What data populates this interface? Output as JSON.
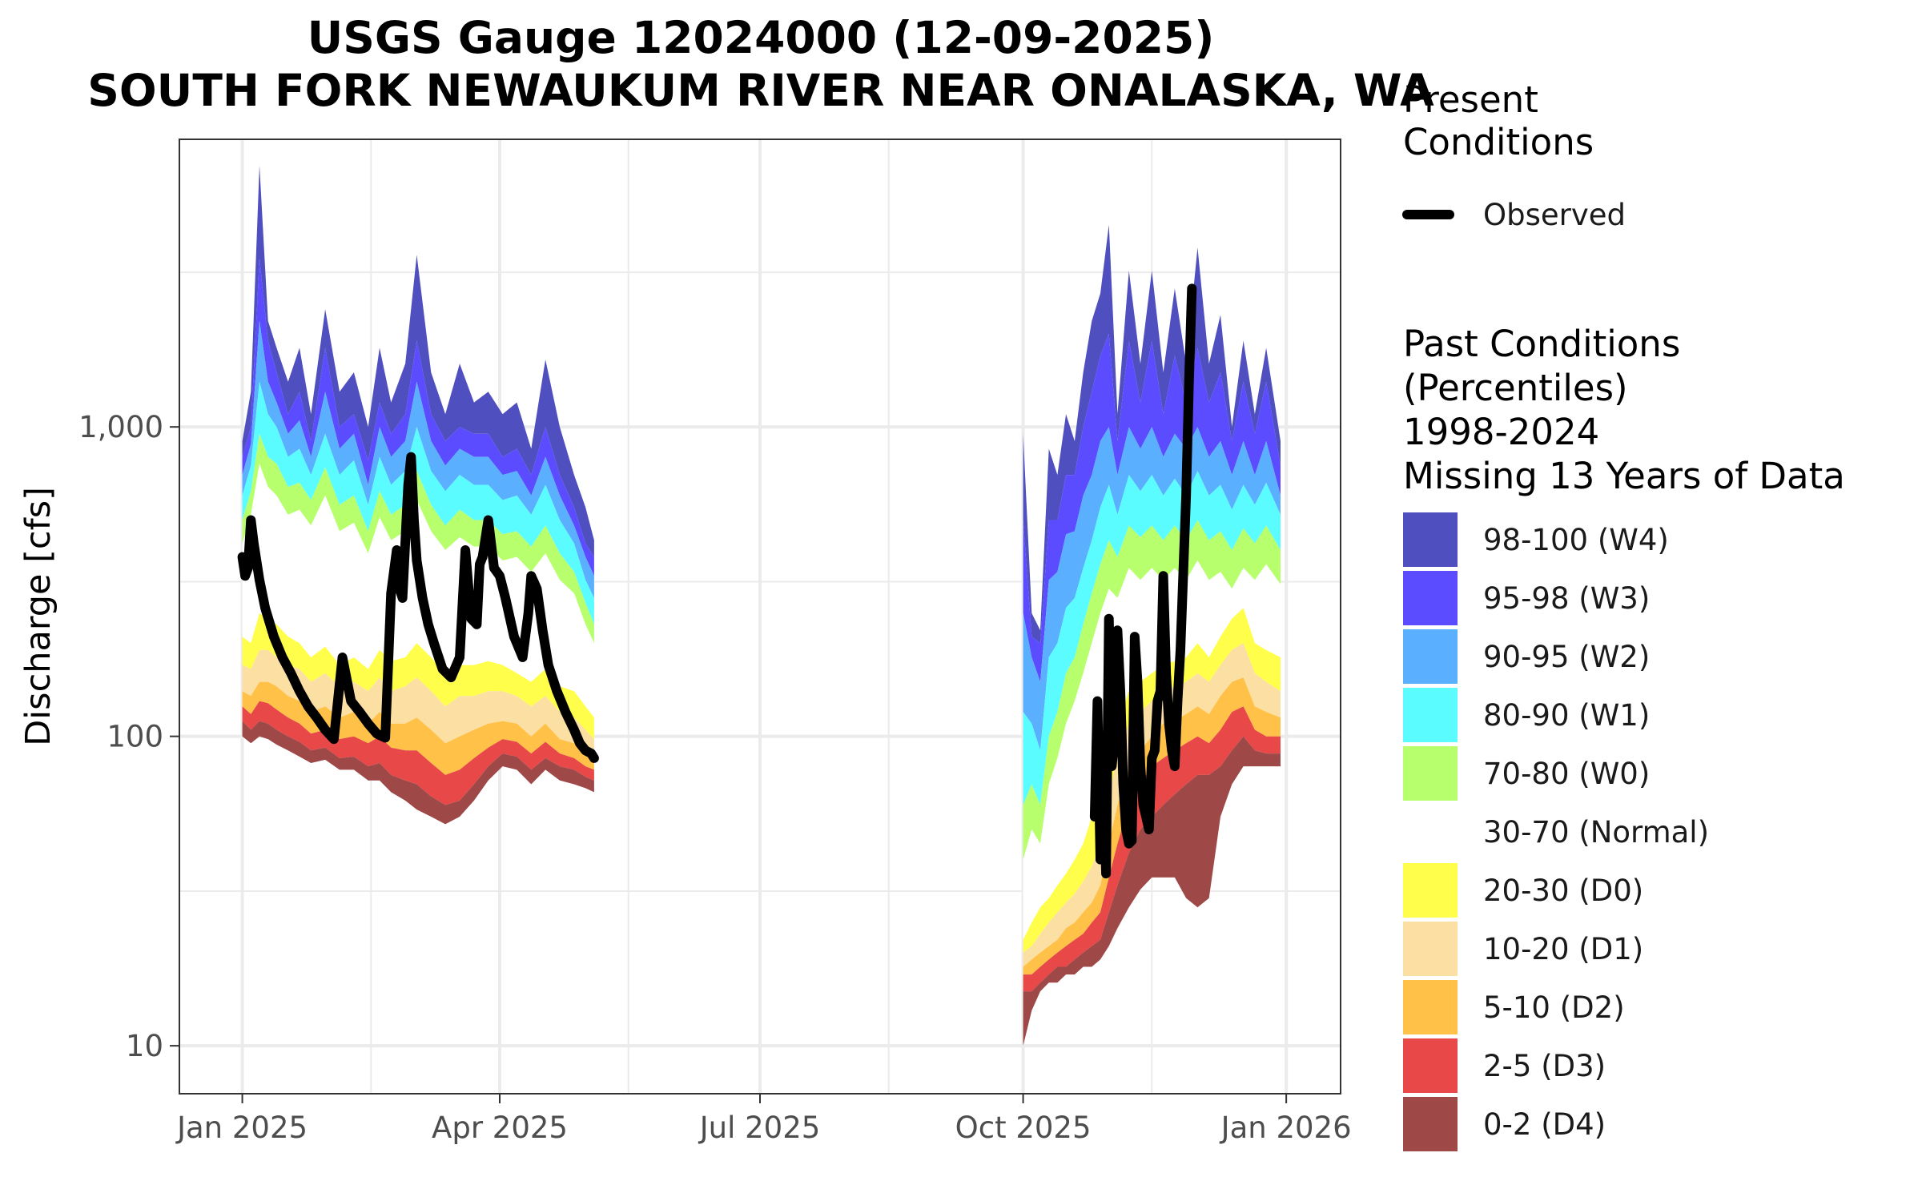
{
  "chart_data": {
    "type": "area",
    "title": "USGS Gauge 12024000 (12-09-2025)",
    "subtitle": "SOUTH FORK NEWAUKUM RIVER NEAR ONALASKA, WA",
    "ylabel": "Discharge [cfs]",
    "xlabel": "",
    "y_scale": "log",
    "ylim": [
      7,
      8500
    ],
    "xlim": [
      "2024-12-10",
      "2026-01-20"
    ],
    "grid": true,
    "legend_position": "right",
    "x_ticks": [
      {
        "date": "2025-01-01",
        "label": "Jan 2025"
      },
      {
        "date": "2025-04-01",
        "label": "Apr 2025"
      },
      {
        "date": "2025-07-01",
        "label": "Jul 2025"
      },
      {
        "date": "2025-10-01",
        "label": "Oct 2025"
      },
      {
        "date": "2026-01-01",
        "label": "Jan 2026"
      }
    ],
    "x_minor_ticks": [
      "2025-02-15",
      "2025-05-16",
      "2025-08-15",
      "2025-11-15"
    ],
    "y_ticks": [
      {
        "value": 10,
        "label": "10"
      },
      {
        "value": 100,
        "label": "100"
      },
      {
        "value": 1000,
        "label": "1,000"
      }
    ],
    "y_minor_ticks": [
      31.6,
      316,
      3160
    ],
    "present_legend_title": "Present\nConditions",
    "observed_label": "Observed",
    "observed_color": "#000000",
    "past_legend_title": "Past Conditions\n(Percentiles)\n1998-2024\nMissing 13 Years of Data",
    "bands": [
      {
        "name": "98-100 (W4)",
        "color": "#4f4fbf"
      },
      {
        "name": "95-98 (W3)",
        "color": "#5b4cff"
      },
      {
        "name": "90-95 (W2)",
        "color": "#5aafff"
      },
      {
        "name": "80-90 (W1)",
        "color": "#5afcff"
      },
      {
        "name": "70-80 (W0)",
        "color": "#b7ff6d"
      },
      {
        "name": "30-70 (Normal)",
        "color": "#ffffff"
      },
      {
        "name": "20-30 (D0)",
        "color": "#ffff4b"
      },
      {
        "name": "10-20 (D1)",
        "color": "#fcdfa3"
      },
      {
        "name": "5-10 (D2)",
        "color": "#ffc148"
      },
      {
        "name": "2-5 (D3)",
        "color": "#e94848"
      },
      {
        "name": "0-2 (D4)",
        "color": "#9e4848"
      }
    ],
    "percentile_bands": {
      "segment_1": {
        "x": [
          "2025-01-01",
          "2025-01-04",
          "2025-01-07",
          "2025-01-10",
          "2025-01-13",
          "2025-01-17",
          "2025-01-21",
          "2025-01-25",
          "2025-01-30",
          "2025-02-04",
          "2025-02-09",
          "2025-02-14",
          "2025-02-18",
          "2025-02-22",
          "2025-02-27",
          "2025-03-03",
          "2025-03-08",
          "2025-03-13",
          "2025-03-18",
          "2025-03-23",
          "2025-03-28",
          "2025-04-02",
          "2025-04-07",
          "2025-04-12",
          "2025-04-17",
          "2025-04-22",
          "2025-04-27",
          "2025-05-01",
          "2025-05-04"
        ],
        "p100": [
          900,
          1300,
          7000,
          2200,
          1800,
          1400,
          1800,
          1100,
          2400,
          1300,
          1500,
          1000,
          1800,
          1200,
          1600,
          3600,
          1500,
          1100,
          1600,
          1200,
          1300,
          1100,
          1200,
          850,
          1650,
          1000,
          700,
          550,
          430
        ],
        "p98": [
          800,
          1000,
          3500,
          1900,
          1500,
          1100,
          1300,
          900,
          1800,
          1000,
          1100,
          780,
          1200,
          950,
          1100,
          1900,
          1100,
          900,
          1000,
          950,
          950,
          800,
          850,
          700,
          1000,
          700,
          550,
          420,
          380
        ],
        "p95": [
          700,
          880,
          2200,
          1400,
          1200,
          950,
          1050,
          800,
          1300,
          850,
          950,
          650,
          1000,
          800,
          900,
          1400,
          900,
          750,
          850,
          800,
          800,
          700,
          720,
          600,
          800,
          600,
          480,
          380,
          330
        ],
        "p90": [
          600,
          750,
          1400,
          1100,
          1000,
          800,
          850,
          700,
          950,
          700,
          780,
          560,
          800,
          650,
          720,
          1000,
          720,
          620,
          700,
          650,
          650,
          580,
          600,
          520,
          650,
          500,
          420,
          320,
          280
        ],
        "p80": [
          500,
          620,
          950,
          800,
          760,
          640,
          660,
          580,
          740,
          560,
          600,
          460,
          620,
          520,
          560,
          720,
          560,
          480,
          540,
          500,
          500,
          450,
          460,
          410,
          480,
          390,
          340,
          270,
          230
        ],
        "p70": [
          420,
          520,
          760,
          640,
          600,
          520,
          540,
          480,
          600,
          460,
          490,
          390,
          510,
          430,
          460,
          580,
          460,
          400,
          440,
          410,
          410,
          370,
          380,
          340,
          390,
          320,
          290,
          230,
          200
        ],
        "p30": [
          210,
          200,
          250,
          240,
          230,
          210,
          200,
          180,
          195,
          170,
          180,
          165,
          190,
          175,
          180,
          200,
          180,
          160,
          170,
          170,
          175,
          170,
          160,
          150,
          165,
          145,
          140,
          125,
          115
        ],
        "p20": [
          170,
          165,
          190,
          190,
          180,
          170,
          165,
          150,
          160,
          145,
          150,
          140,
          155,
          140,
          145,
          155,
          140,
          125,
          135,
          135,
          140,
          140,
          135,
          125,
          135,
          120,
          115,
          105,
          98
        ],
        "p10": [
          140,
          135,
          150,
          150,
          145,
          135,
          130,
          120,
          125,
          115,
          120,
          110,
          120,
          110,
          110,
          115,
          105,
          95,
          100,
          105,
          110,
          112,
          110,
          100,
          110,
          98,
          95,
          88,
          85
        ],
        "p5": [
          125,
          118,
          130,
          128,
          122,
          115,
          110,
          102,
          105,
          98,
          100,
          95,
          100,
          92,
          90,
          90,
          82,
          75,
          78,
          85,
          92,
          98,
          96,
          88,
          96,
          88,
          85,
          80,
          78
        ],
        "p2": [
          112,
          105,
          112,
          110,
          105,
          100,
          96,
          90,
          92,
          85,
          86,
          80,
          82,
          75,
          72,
          70,
          64,
          60,
          62,
          70,
          80,
          88,
          86,
          78,
          85,
          80,
          78,
          74,
          72
        ],
        "p0": [
          100,
          95,
          100,
          98,
          94,
          90,
          86,
          82,
          84,
          78,
          78,
          72,
          72,
          66,
          62,
          58,
          55,
          52,
          55,
          62,
          72,
          80,
          78,
          70,
          78,
          72,
          70,
          68,
          66
        ]
      },
      "segment_2": {
        "x": [
          "2025-10-01",
          "2025-10-04",
          "2025-10-07",
          "2025-10-10",
          "2025-10-13",
          "2025-10-16",
          "2025-10-19",
          "2025-10-22",
          "2025-10-25",
          "2025-10-28",
          "2025-10-31",
          "2025-11-03",
          "2025-11-07",
          "2025-11-11",
          "2025-11-15",
          "2025-11-19",
          "2025-11-23",
          "2025-11-27",
          "2025-12-01",
          "2025-12-05",
          "2025-12-09",
          "2025-12-13",
          "2025-12-17",
          "2025-12-21",
          "2025-12-25",
          "2025-12-30"
        ],
        "p100": [
          950,
          250,
          220,
          850,
          700,
          1100,
          900,
          1500,
          2200,
          2700,
          4500,
          1100,
          3200,
          1600,
          3200,
          1500,
          2800,
          1600,
          3800,
          1600,
          2300,
          1000,
          1900,
          1100,
          1800,
          900
        ],
        "p98": [
          500,
          210,
          200,
          500,
          500,
          700,
          700,
          1000,
          1300,
          1700,
          2000,
          900,
          1900,
          1200,
          1900,
          1100,
          1700,
          1200,
          1800,
          1200,
          1500,
          900,
          1400,
          950,
          1400,
          750
        ],
        "p95": [
          250,
          180,
          150,
          320,
          340,
          450,
          460,
          600,
          700,
          900,
          1000,
          700,
          1000,
          850,
          1000,
          800,
          950,
          850,
          1000,
          800,
          900,
          700,
          900,
          700,
          900,
          600
        ],
        "p90": [
          120,
          110,
          90,
          180,
          200,
          260,
          280,
          350,
          430,
          550,
          650,
          520,
          700,
          620,
          700,
          600,
          680,
          600,
          720,
          600,
          650,
          540,
          650,
          560,
          660,
          520
        ],
        "p80": [
          60,
          70,
          60,
          100,
          120,
          160,
          180,
          230,
          290,
          360,
          430,
          380,
          480,
          440,
          480,
          430,
          480,
          430,
          500,
          430,
          460,
          400,
          470,
          420,
          480,
          400
        ],
        "p70": [
          40,
          50,
          45,
          70,
          85,
          110,
          130,
          160,
          200,
          250,
          300,
          280,
          350,
          320,
          350,
          320,
          350,
          320,
          370,
          320,
          340,
          300,
          350,
          320,
          360,
          310
        ],
        "p30": [
          22,
          25,
          28,
          30,
          33,
          36,
          40,
          45,
          55,
          60,
          90,
          110,
          140,
          150,
          160,
          170,
          175,
          180,
          200,
          180,
          210,
          240,
          260,
          200,
          190,
          180
        ],
        "p20": [
          20,
          21,
          23,
          25,
          27,
          29,
          31,
          34,
          38,
          45,
          65,
          85,
          110,
          120,
          130,
          140,
          145,
          150,
          160,
          150,
          170,
          190,
          200,
          160,
          150,
          140
        ],
        "p10": [
          18,
          19,
          20,
          21,
          22,
          24,
          25,
          27,
          29,
          33,
          45,
          60,
          80,
          90,
          100,
          110,
          112,
          118,
          125,
          118,
          135,
          150,
          155,
          125,
          120,
          115
        ],
        "p5": [
          17,
          17,
          18,
          19,
          20,
          21,
          22,
          23,
          25,
          27,
          35,
          45,
          60,
          70,
          80,
          85,
          90,
          95,
          100,
          95,
          105,
          120,
          125,
          105,
          100,
          100
        ],
        "p2": [
          15,
          15,
          16,
          17,
          18,
          18,
          19,
          20,
          21,
          22,
          27,
          33,
          42,
          50,
          55,
          60,
          65,
          70,
          75,
          75,
          80,
          90,
          100,
          90,
          88,
          88
        ],
        "p0": [
          10,
          13,
          15,
          16,
          16,
          17,
          17,
          18,
          18,
          19,
          21,
          24,
          28,
          32,
          35,
          35,
          35,
          30,
          28,
          30,
          55,
          70,
          80,
          80,
          80,
          80
        ]
      }
    },
    "observed": {
      "segment_1": {
        "x": [
          "2025-01-01",
          "2025-01-02",
          "2025-01-03",
          "2025-01-04",
          "2025-01-05",
          "2025-01-07",
          "2025-01-09",
          "2025-01-12",
          "2025-01-15",
          "2025-01-18",
          "2025-01-21",
          "2025-01-24",
          "2025-01-27",
          "2025-01-30",
          "2025-02-02",
          "2025-02-05",
          "2025-02-08",
          "2025-02-11",
          "2025-02-14",
          "2025-02-17",
          "2025-02-20",
          "2025-02-22",
          "2025-02-24",
          "2025-02-25",
          "2025-02-26",
          "2025-02-28",
          "2025-03-01",
          "2025-03-02",
          "2025-03-03",
          "2025-03-05",
          "2025-03-07",
          "2025-03-09",
          "2025-03-12",
          "2025-03-15",
          "2025-03-18",
          "2025-03-20",
          "2025-03-22",
          "2025-03-24",
          "2025-03-25",
          "2025-03-26",
          "2025-03-28",
          "2025-03-30",
          "2025-04-01",
          "2025-04-03",
          "2025-04-06",
          "2025-04-09",
          "2025-04-11",
          "2025-04-12",
          "2025-04-14",
          "2025-04-16",
          "2025-04-18",
          "2025-04-21",
          "2025-04-24",
          "2025-04-27",
          "2025-04-29",
          "2025-05-01",
          "2025-05-03",
          "2025-05-04"
        ],
        "y": [
          380,
          330,
          350,
          500,
          420,
          320,
          260,
          210,
          180,
          160,
          140,
          125,
          115,
          105,
          98,
          180,
          130,
          120,
          110,
          102,
          99,
          290,
          400,
          300,
          280,
          650,
          800,
          500,
          370,
          280,
          230,
          200,
          165,
          155,
          180,
          400,
          240,
          230,
          360,
          380,
          500,
          350,
          330,
          280,
          210,
          180,
          250,
          330,
          300,
          220,
          170,
          140,
          120,
          105,
          95,
          90,
          88,
          85
        ]
      },
      "segment_2": {
        "x": [
          "2025-10-26",
          "2025-10-27",
          "2025-10-28",
          "2025-10-29",
          "2025-10-30",
          "2025-10-31",
          "2025-11-01",
          "2025-11-02",
          "2025-11-03",
          "2025-11-04",
          "2025-11-05",
          "2025-11-06",
          "2025-11-07",
          "2025-11-08",
          "2025-11-09",
          "2025-11-10",
          "2025-11-11",
          "2025-11-12",
          "2025-11-13",
          "2025-11-14",
          "2025-11-15",
          "2025-11-16",
          "2025-11-17",
          "2025-11-18",
          "2025-11-19",
          "2025-11-20",
          "2025-11-21",
          "2025-11-22",
          "2025-11-23",
          "2025-11-24",
          "2025-11-25",
          "2025-11-26",
          "2025-11-27",
          "2025-11-28",
          "2025-11-29",
          "2025-11-30",
          "2025-12-01",
          "2025-12-02",
          "2025-12-03",
          "2025-12-04",
          "2025-12-05",
          "2025-12-06",
          "2025-12-07",
          "2025-12-08",
          "2025-12-09"
        ],
        "y": [
          55,
          130,
          40,
          75,
          36,
          240,
          80,
          100,
          220,
          140,
          70,
          50,
          45,
          46,
          210,
          150,
          80,
          60,
          55,
          50,
          85,
          90,
          130,
          140,
          330,
          160,
          110,
          90,
          80,
          130,
          190,
          340,
          600,
          1400,
          2800,
          null,
          null,
          null,
          null,
          null,
          null,
          null,
          null,
          null,
          null
        ]
      }
    }
  }
}
